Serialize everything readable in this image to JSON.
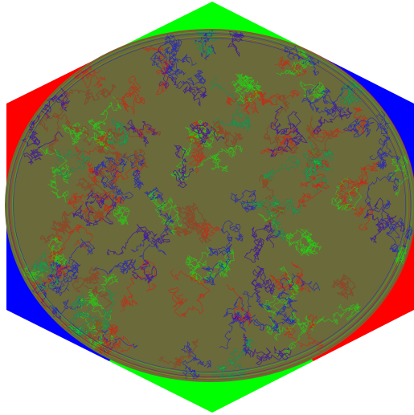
{
  "image": {
    "background_color": "#ffffff",
    "colors": {
      "red": "#ff0000",
      "green": "#00ff00",
      "blue": "#0000ff"
    },
    "hexagon_sectors": [
      {
        "name": "top",
        "color": "#00ff00"
      },
      {
        "name": "upper-right",
        "color": "#0000ff"
      },
      {
        "name": "lower-right",
        "color": "#ff0000"
      },
      {
        "name": "bottom",
        "color": "#00ff00"
      },
      {
        "name": "lower-left",
        "color": "#0000ff"
      },
      {
        "name": "upper-left",
        "color": "#ff0000"
      }
    ],
    "pattern_palette": [
      "#ff0000",
      "#00ff00",
      "#0000ff"
    ],
    "pattern_base_tint": "#6b6a3a"
  }
}
